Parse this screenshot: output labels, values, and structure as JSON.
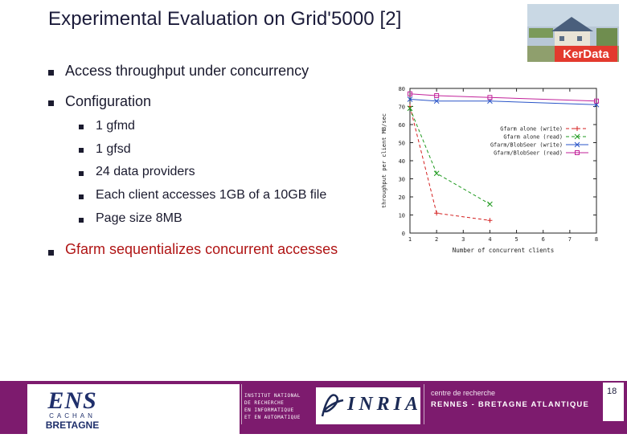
{
  "slide": {
    "title": "Experimental Evaluation on Grid'5000 [2]",
    "page_number": "18"
  },
  "logo_top": {
    "text": "KerData"
  },
  "bullets": [
    {
      "text": "Access throughput under concurrency",
      "level": 1
    },
    {
      "text": "Configuration",
      "level": 1
    },
    {
      "text": "1 gfmd",
      "level": 2
    },
    {
      "text": "1 gfsd",
      "level": 2
    },
    {
      "text": "24 data providers",
      "level": 2
    },
    {
      "text": "Each client accesses 1GB of a 10GB file",
      "level": 2
    },
    {
      "text": "Page size 8MB",
      "level": 2
    },
    {
      "text": "Gfarm sequentializes concurrent accesses",
      "level": 1,
      "color": "#b01515"
    }
  ],
  "footer": {
    "ens_line1": "ENS",
    "ens_line2": "CACHAN",
    "ens_line3": "BRETAGNE",
    "inst_lines": [
      "INSTITUT NATIONAL",
      "DE RECHERCHE",
      "EN INFORMATIQUE",
      "ET EN AUTOMATIQUE"
    ],
    "inria": "INRIA",
    "centre_line1": "centre de recherche",
    "centre_line2": "RENNES - BRETAGNE ATLANTIQUE"
  },
  "chart_data": {
    "type": "line",
    "xlabel": "Number of concurrent clients",
    "ylabel": "throughput per client MB/sec",
    "xlim": [
      1,
      8
    ],
    "ylim": [
      0,
      80
    ],
    "xticks": [
      "1",
      "2",
      "3",
      "4",
      "5",
      "6",
      "7",
      "8"
    ],
    "yticks": [
      "0",
      "10",
      "20",
      "30",
      "40",
      "50",
      "60",
      "70",
      "80"
    ],
    "legend_position": "top-right",
    "series": [
      {
        "name": "Gfarm alone (write)",
        "color": "#d42020",
        "marker": "+",
        "dash": "dash",
        "x": [
          1,
          2,
          4
        ],
        "y": [
          70,
          11,
          7
        ]
      },
      {
        "name": "Gfarm alone (read)",
        "color": "#1f9a1f",
        "marker": "x",
        "dash": "dash",
        "x": [
          1,
          2,
          4
        ],
        "y": [
          69,
          33,
          16
        ]
      },
      {
        "name": "Gfarm/BlobSeer (write)",
        "color": "#2a55c8",
        "marker": "x",
        "dash": "solid",
        "x": [
          1,
          2,
          4,
          8
        ],
        "y": [
          74,
          73,
          73,
          71
        ]
      },
      {
        "name": "Gfarm/BlobSeer (read)",
        "color": "#c2229a",
        "marker": "square",
        "dash": "solid",
        "x": [
          1,
          2,
          4,
          8
        ],
        "y": [
          77,
          76,
          75,
          73
        ]
      }
    ]
  }
}
